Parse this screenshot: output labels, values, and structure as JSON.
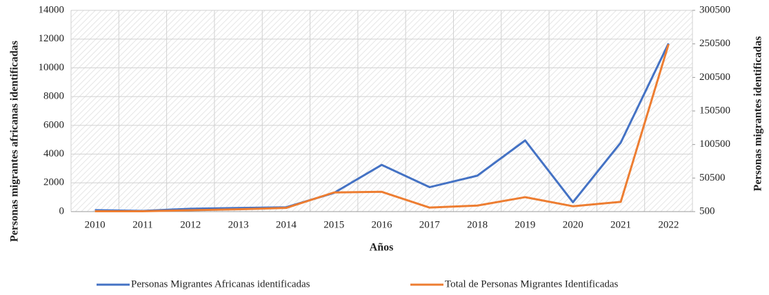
{
  "chart_data": {
    "type": "line",
    "x_label": "Años",
    "y_label": "Personas migrantes africanas identificadas",
    "y2_label": "Personas migrantes identificadas",
    "categories": [
      "2010",
      "2011",
      "2012",
      "2013",
      "2014",
      "2015",
      "2016",
      "2017",
      "2018",
      "2019",
      "2020",
      "2021",
      "2022"
    ],
    "series": [
      {
        "name": "Personas Migrantes Africanas identificadas",
        "color": "#4472c4",
        "axis": "y",
        "values": [
          100,
          50,
          200,
          250,
          300,
          1300,
          3250,
          1700,
          2500,
          4950,
          650,
          4800,
          11700
        ]
      },
      {
        "name": "Total de Personas Migrantes Identificadas",
        "color": "#ed7d31",
        "axis": "y2",
        "values": [
          1000,
          1000,
          2500,
          4000,
          6000,
          29000,
          30000,
          6500,
          9500,
          22000,
          8500,
          15000,
          250000
        ]
      }
    ],
    "ylim": [
      0,
      14000
    ],
    "yticks": [
      0,
      2000,
      4000,
      6000,
      8000,
      10000,
      12000,
      14000
    ],
    "y2lim": [
      500,
      300500
    ],
    "y2ticks": [
      500,
      50500,
      100500,
      150500,
      200500,
      250500,
      300500
    ],
    "grid": true,
    "legend": "bottom"
  }
}
